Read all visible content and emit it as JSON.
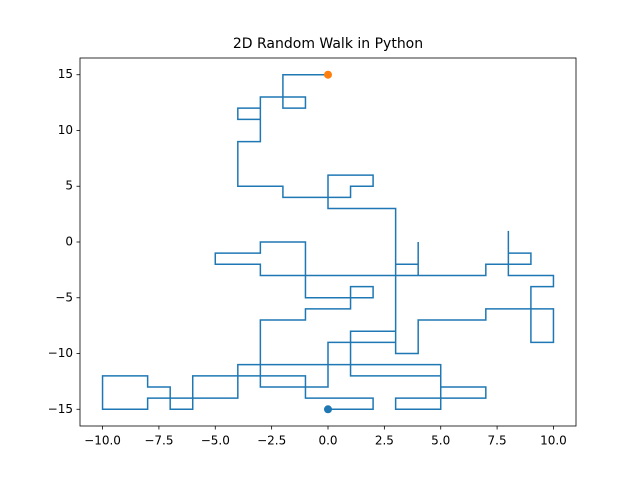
{
  "chart_data": {
    "type": "line",
    "title": "2D Random Walk in Python",
    "x": [
      0,
      2,
      2,
      -1,
      -1,
      -6,
      -6,
      -7,
      -7,
      -8,
      -8,
      -10,
      -10,
      -8,
      -8,
      -4,
      -4,
      5,
      5,
      7,
      7,
      3,
      3,
      5,
      5,
      1,
      1,
      3,
      3,
      4,
      4,
      7,
      7,
      10,
      10,
      9,
      9,
      10,
      10,
      8,
      8,
      8,
      9,
      9,
      7,
      7,
      3,
      3,
      4,
      4,
      4,
      -3,
      -3,
      -5,
      -5,
      -3,
      -3,
      -1,
      -1,
      2,
      2,
      1,
      1,
      -1,
      -1,
      -3,
      -3,
      0,
      0,
      3,
      3,
      3,
      0,
      0,
      2,
      2,
      1,
      1,
      -2,
      -2,
      -4,
      -4,
      -3,
      -3,
      -4,
      -4,
      -3,
      -3,
      -1,
      -1,
      -2,
      -2,
      0
    ],
    "values": [
      -15,
      -15,
      -14,
      -14,
      -12,
      -12,
      -15,
      -15,
      -13,
      -13,
      -12,
      -12,
      -15,
      -15,
      -14,
      -14,
      -11,
      -11,
      -13,
      -13,
      -14,
      -14,
      -15,
      -15,
      -12,
      -12,
      -8,
      -8,
      -10,
      -10,
      -7,
      -7,
      -6,
      -6,
      -9,
      -9,
      -4,
      -4,
      -3,
      -3,
      1,
      -1,
      -1,
      -2,
      -2,
      -3,
      -3,
      -2,
      -2,
      0,
      -3,
      -3,
      -2,
      -2,
      -1,
      -1,
      0,
      0,
      -5,
      -5,
      -4,
      -4,
      -6,
      -6,
      -7,
      -7,
      -13,
      -13,
      -9,
      -9,
      -4,
      3,
      3,
      6,
      6,
      5,
      5,
      4,
      4,
      5,
      5,
      9,
      9,
      12,
      12,
      11,
      11,
      13,
      13,
      12,
      12,
      15,
      15
    ],
    "color": "#1f77b4",
    "markers": [
      {
        "x": 0,
        "y": -15,
        "color": "#1f77b4"
      },
      {
        "x": 0,
        "y": 15,
        "color": "#ff7f0e"
      }
    ],
    "xlim": [
      -11,
      11
    ],
    "ylim": [
      -16.5,
      16.5
    ],
    "xticks": [
      {
        "value": -10,
        "label": "−10.0"
      },
      {
        "value": -7.5,
        "label": "−7.5"
      },
      {
        "value": -5,
        "label": "−5.0"
      },
      {
        "value": -2.5,
        "label": "−2.5"
      },
      {
        "value": 0,
        "label": "0.0"
      },
      {
        "value": 2.5,
        "label": "2.5"
      },
      {
        "value": 5,
        "label": "5.0"
      },
      {
        "value": 7.5,
        "label": "7.5"
      },
      {
        "value": 10,
        "label": "10.0"
      }
    ],
    "yticks": [
      {
        "value": -15,
        "label": "−15"
      },
      {
        "value": -10,
        "label": "−10"
      },
      {
        "value": -5,
        "label": "−5"
      },
      0,
      5,
      10,
      15
    ]
  }
}
